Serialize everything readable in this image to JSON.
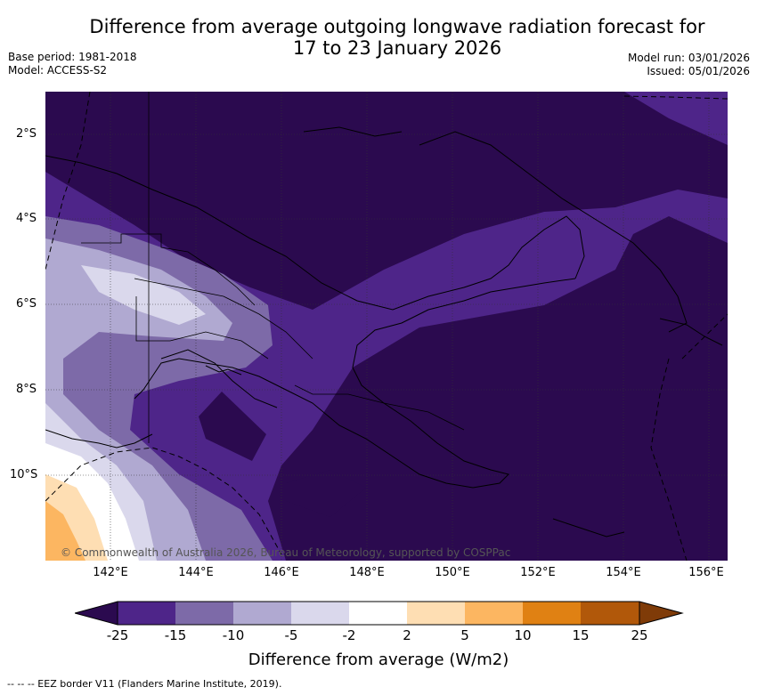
{
  "title_line1": "Difference from average outgoing longwave radiation forecast for",
  "title_line2": "17 to 23 January 2026",
  "base_period": "Base period: 1981-2018",
  "model": "Model: ACCESS-S2",
  "model_run": "Model run: 03/01/2026",
  "issued": "Issued: 05/01/2026",
  "lat_labels": [
    "2°S",
    "4°S",
    "6°S",
    "8°S",
    "10°S"
  ],
  "lon_labels": [
    "142°E",
    "144°E",
    "146°E",
    "148°E",
    "150°E",
    "152°E",
    "154°E",
    "156°E"
  ],
  "copyright": "© Commonwealth of Australia 2026, Bureau of Meteorology, supported by COSPPac",
  "colorbar": {
    "ticks": [
      "-25",
      "-15",
      "-10",
      "-5",
      "-2",
      "2",
      "5",
      "10",
      "15",
      "25"
    ],
    "colors": [
      "#2b0a4f",
      "#4e2589",
      "#7d6aa8",
      "#b0a9d1",
      "#dad8ec",
      "#ffffff",
      "#fedeb3",
      "#fcb661",
      "#e08113",
      "#b1580a",
      "#7f3b08"
    ],
    "label": "Difference from average (W/m2)"
  },
  "footnote": "--  --  -- EEZ border V11 (Flanders Marine Institute, 2019)."
}
